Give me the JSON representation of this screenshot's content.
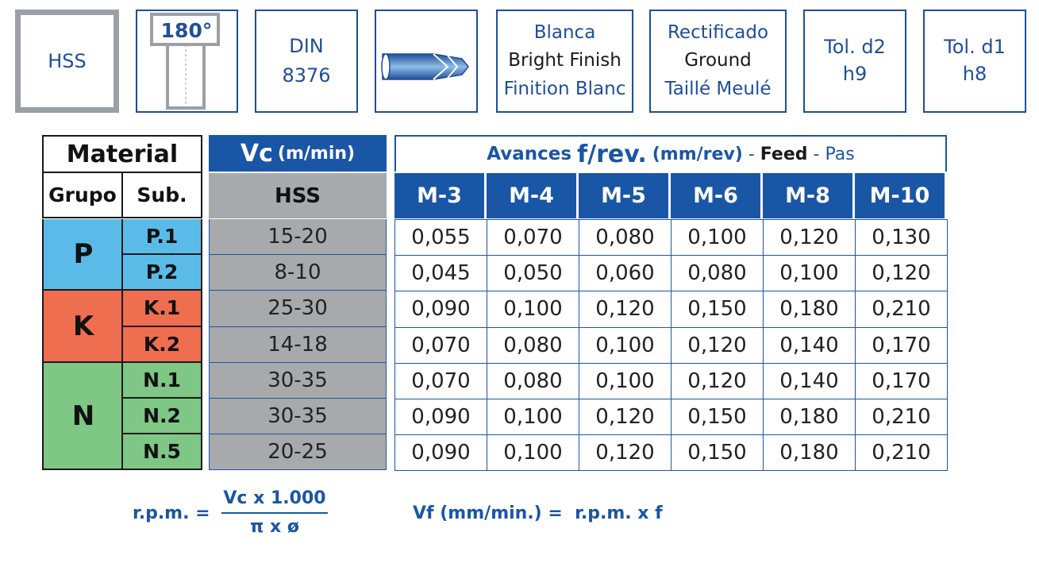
{
  "icons": {
    "material": "HSS",
    "angle": "180°",
    "din": [
      "DIN",
      "8376"
    ],
    "finish": [
      "Blanca",
      "Bright Finish",
      "Finition Blanc"
    ],
    "ground": [
      "Rectificado",
      "Ground",
      "Taillé Meulé"
    ],
    "tol_d2": [
      "Tol. d2",
      "h9"
    ],
    "tol_d1": [
      "Tol. d1",
      "h8"
    ]
  },
  "table": {
    "material_header": "Material",
    "grupo_header": "Grupo",
    "sub_header": "Sub.",
    "vc_header": "Vc",
    "vc_unit": "(m/min)",
    "vc_sub": "HSS",
    "feed_header_a": "Avances",
    "feed_header_b": "f/rev.",
    "feed_header_c": "(mm/rev)",
    "feed_header_dash1": "-",
    "feed_header_d": "Feed",
    "feed_header_dash2": "-",
    "feed_header_e": "Pas",
    "sizes": [
      "M-3",
      "M-4",
      "M-5",
      "M-6",
      "M-8",
      "M-10"
    ],
    "groups": [
      {
        "name": "P",
        "color": "#5bbbe8"
      },
      {
        "name": "K",
        "color": "#ee6e4f"
      },
      {
        "name": "N",
        "color": "#7ec784"
      }
    ],
    "rows": [
      {
        "sub": "P.1",
        "vc": "15-20",
        "feeds": [
          "0,055",
          "0,070",
          "0,080",
          "0,100",
          "0,120",
          "0,130"
        ]
      },
      {
        "sub": "P.2",
        "vc": "8-10",
        "feeds": [
          "0,045",
          "0,050",
          "0,060",
          "0,080",
          "0,100",
          "0,120"
        ]
      },
      {
        "sub": "K.1",
        "vc": "25-30",
        "feeds": [
          "0,090",
          "0,100",
          "0,120",
          "0,150",
          "0,180",
          "0,210"
        ]
      },
      {
        "sub": "K.2",
        "vc": "14-18",
        "feeds": [
          "0,070",
          "0,080",
          "0,100",
          "0,120",
          "0,140",
          "0,170"
        ]
      },
      {
        "sub": "N.1",
        "vc": "30-35",
        "feeds": [
          "0,070",
          "0,080",
          "0,100",
          "0,120",
          "0,140",
          "0,170"
        ]
      },
      {
        "sub": "N.2",
        "vc": "30-35",
        "feeds": [
          "0,090",
          "0,100",
          "0,120",
          "0,150",
          "0,180",
          "0,210"
        ]
      },
      {
        "sub": "N.5",
        "vc": "20-25",
        "feeds": [
          "0,090",
          "0,100",
          "0,120",
          "0,150",
          "0,180",
          "0,210"
        ]
      }
    ]
  },
  "formulas": {
    "rpm_label": "r.p.m. =",
    "rpm_numerator": "Vc x 1.000",
    "rpm_denominator": "π x ø",
    "vf": "Vf (mm/min.) =  r.p.m. x f"
  }
}
